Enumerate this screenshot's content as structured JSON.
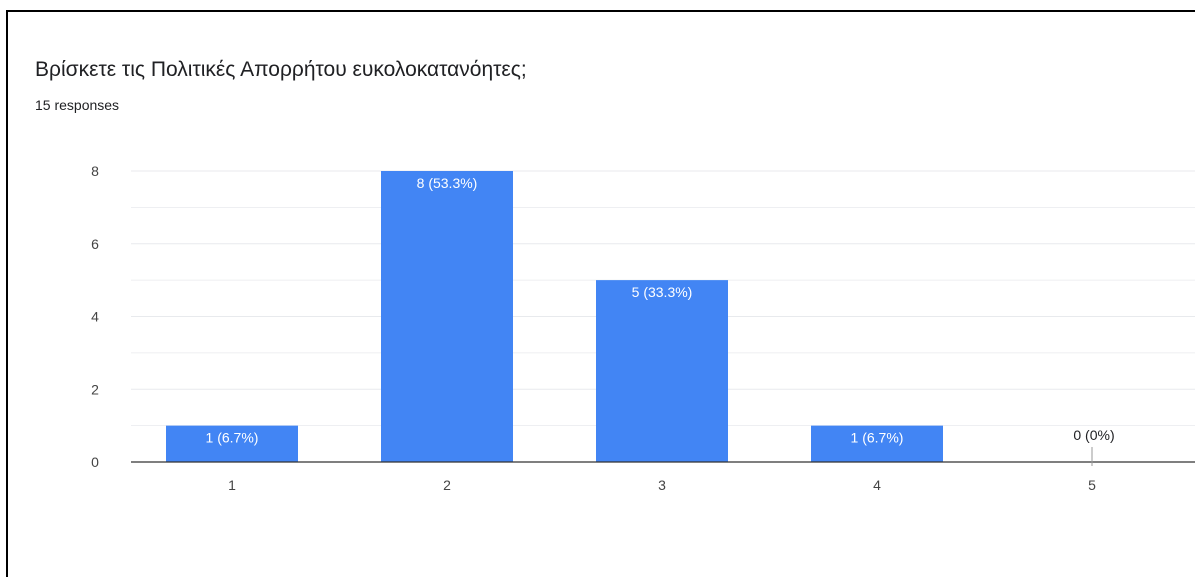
{
  "header": {
    "title": "Βρίσκετε τις Πολιτικές Απορρήτου ευκολοκατανόητες;",
    "responses": "15 responses"
  },
  "colors": {
    "bar": "#4285f4",
    "bar_label_inside": "#ffffff",
    "bar_label_outside": "#202124",
    "grid": "#e8eaed",
    "axis": "#333333",
    "tick_text": "#444444"
  },
  "chart_data": {
    "type": "bar",
    "title": "Βρίσκετε τις Πολιτικές Απορρήτου ευκολοκατανόητες;",
    "subtitle": "15 responses",
    "categories": [
      "1",
      "2",
      "3",
      "4",
      "5"
    ],
    "values": [
      1,
      8,
      5,
      1,
      0
    ],
    "data_labels": [
      "1 (6.7%)",
      "8 (53.3%)",
      "5 (33.3%)",
      "1 (6.7%)",
      "0 (0%)"
    ],
    "y_ticks": [
      "0",
      "2",
      "4",
      "6",
      "8"
    ],
    "ylim": [
      0,
      8
    ],
    "grid": true,
    "legend": "none"
  }
}
